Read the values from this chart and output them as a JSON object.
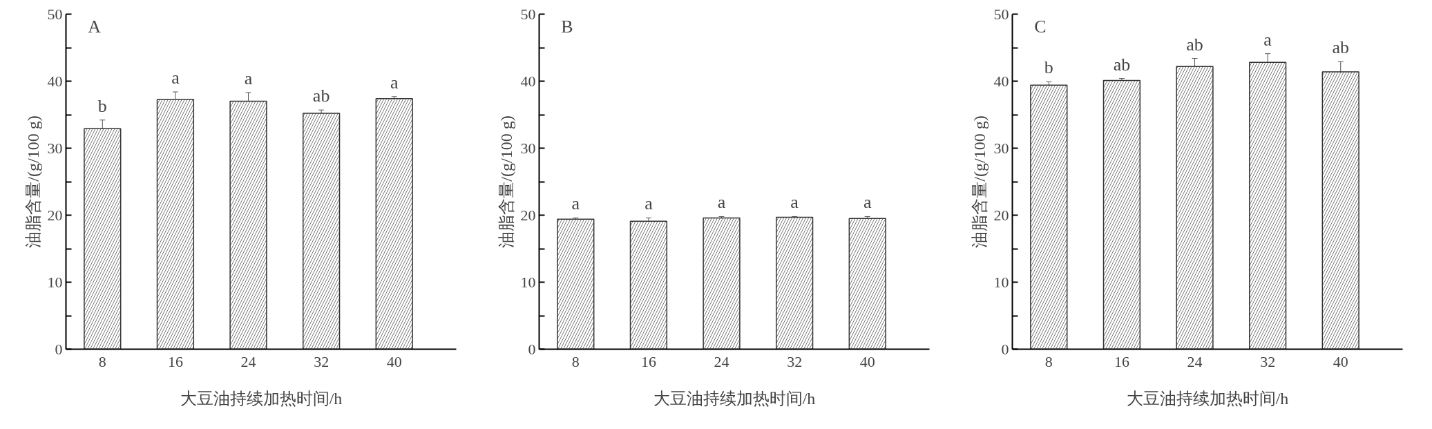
{
  "chart_data": [
    {
      "type": "bar",
      "title": "A",
      "xlabel": "大豆油持续加热时间/h",
      "ylabel": "油脂含量/(g/100 g)",
      "categories": [
        "8",
        "16",
        "24",
        "32",
        "40"
      ],
      "color": "#ffffff",
      "values": [
        32.9,
        37.3,
        37.0,
        35.2,
        37.4
      ],
      "errors": [
        1.3,
        1.1,
        1.3,
        0.5,
        0.3
      ],
      "annotations": [
        {
          "text": "b",
          "x": "8",
          "y": 34.2
        },
        {
          "text": "a",
          "x": "16",
          "y": 38.4
        },
        {
          "text": "a",
          "x": "24",
          "y": 38.3
        },
        {
          "text": "ab",
          "x": "32",
          "y": 35.7
        },
        {
          "text": "a",
          "x": "40",
          "y": 37.7
        }
      ],
      "ylim": [
        0,
        50
      ],
      "yticks": [
        0,
        {
          "value": 5,
          "label": null
        },
        10,
        {
          "value": 15,
          "label": null
        },
        20,
        {
          "value": 25,
          "label": null
        },
        30,
        {
          "value": 35,
          "label": null
        },
        40,
        {
          "value": 45,
          "label": null
        },
        50
      ],
      "grid": false
    },
    {
      "type": "bar",
      "title": "B",
      "xlabel": "大豆油持续加热时间/h",
      "ylabel": "油脂含量/(g/100 g)",
      "categories": [
        "8",
        "16",
        "24",
        "32",
        "40"
      ],
      "color": "#ffffff",
      "values": [
        19.4,
        19.1,
        19.6,
        19.7,
        19.5
      ],
      "errors": [
        0.2,
        0.5,
        0.2,
        0.1,
        0.3
      ],
      "annotations": [
        {
          "text": "a",
          "x": "8",
          "y": 19.6
        },
        {
          "text": "a",
          "x": "16",
          "y": 19.6
        },
        {
          "text": "a",
          "x": "24",
          "y": 19.8
        },
        {
          "text": "a",
          "x": "32",
          "y": 19.8
        },
        {
          "text": "a",
          "x": "40",
          "y": 19.8
        }
      ],
      "ylim": [
        0,
        50
      ],
      "yticks": [
        0,
        {
          "value": 5,
          "label": null
        },
        10,
        {
          "value": 15,
          "label": null
        },
        20,
        {
          "value": 25,
          "label": null
        },
        30,
        {
          "value": 35,
          "label": null
        },
        40,
        {
          "value": 45,
          "label": null
        },
        50
      ],
      "grid": false
    },
    {
      "type": "bar",
      "title": "C",
      "xlabel": "大豆油持续加热时间/h",
      "ylabel": "油脂含量/(g/100 g)",
      "categories": [
        "8",
        "16",
        "24",
        "32",
        "40"
      ],
      "color": "#ffffff",
      "values": [
        39.4,
        40.1,
        42.2,
        42.8,
        41.4
      ],
      "errors": [
        0.5,
        0.3,
        1.2,
        1.3,
        1.5
      ],
      "annotations": [
        {
          "text": "b",
          "x": "8",
          "y": 39.9
        },
        {
          "text": "ab",
          "x": "16",
          "y": 40.4
        },
        {
          "text": "ab",
          "x": "24",
          "y": 43.4
        },
        {
          "text": "a",
          "x": "32",
          "y": 44.1
        },
        {
          "text": "ab",
          "x": "40",
          "y": 42.9
        }
      ],
      "ylim": [
        0,
        50
      ],
      "yticks": [
        0,
        {
          "value": 5,
          "label": null
        },
        10,
        {
          "value": 15,
          "label": null
        },
        20,
        {
          "value": 25,
          "label": null
        },
        30,
        {
          "value": 35,
          "label": null
        },
        40,
        {
          "value": 45,
          "label": null
        },
        50
      ],
      "grid": false
    }
  ]
}
